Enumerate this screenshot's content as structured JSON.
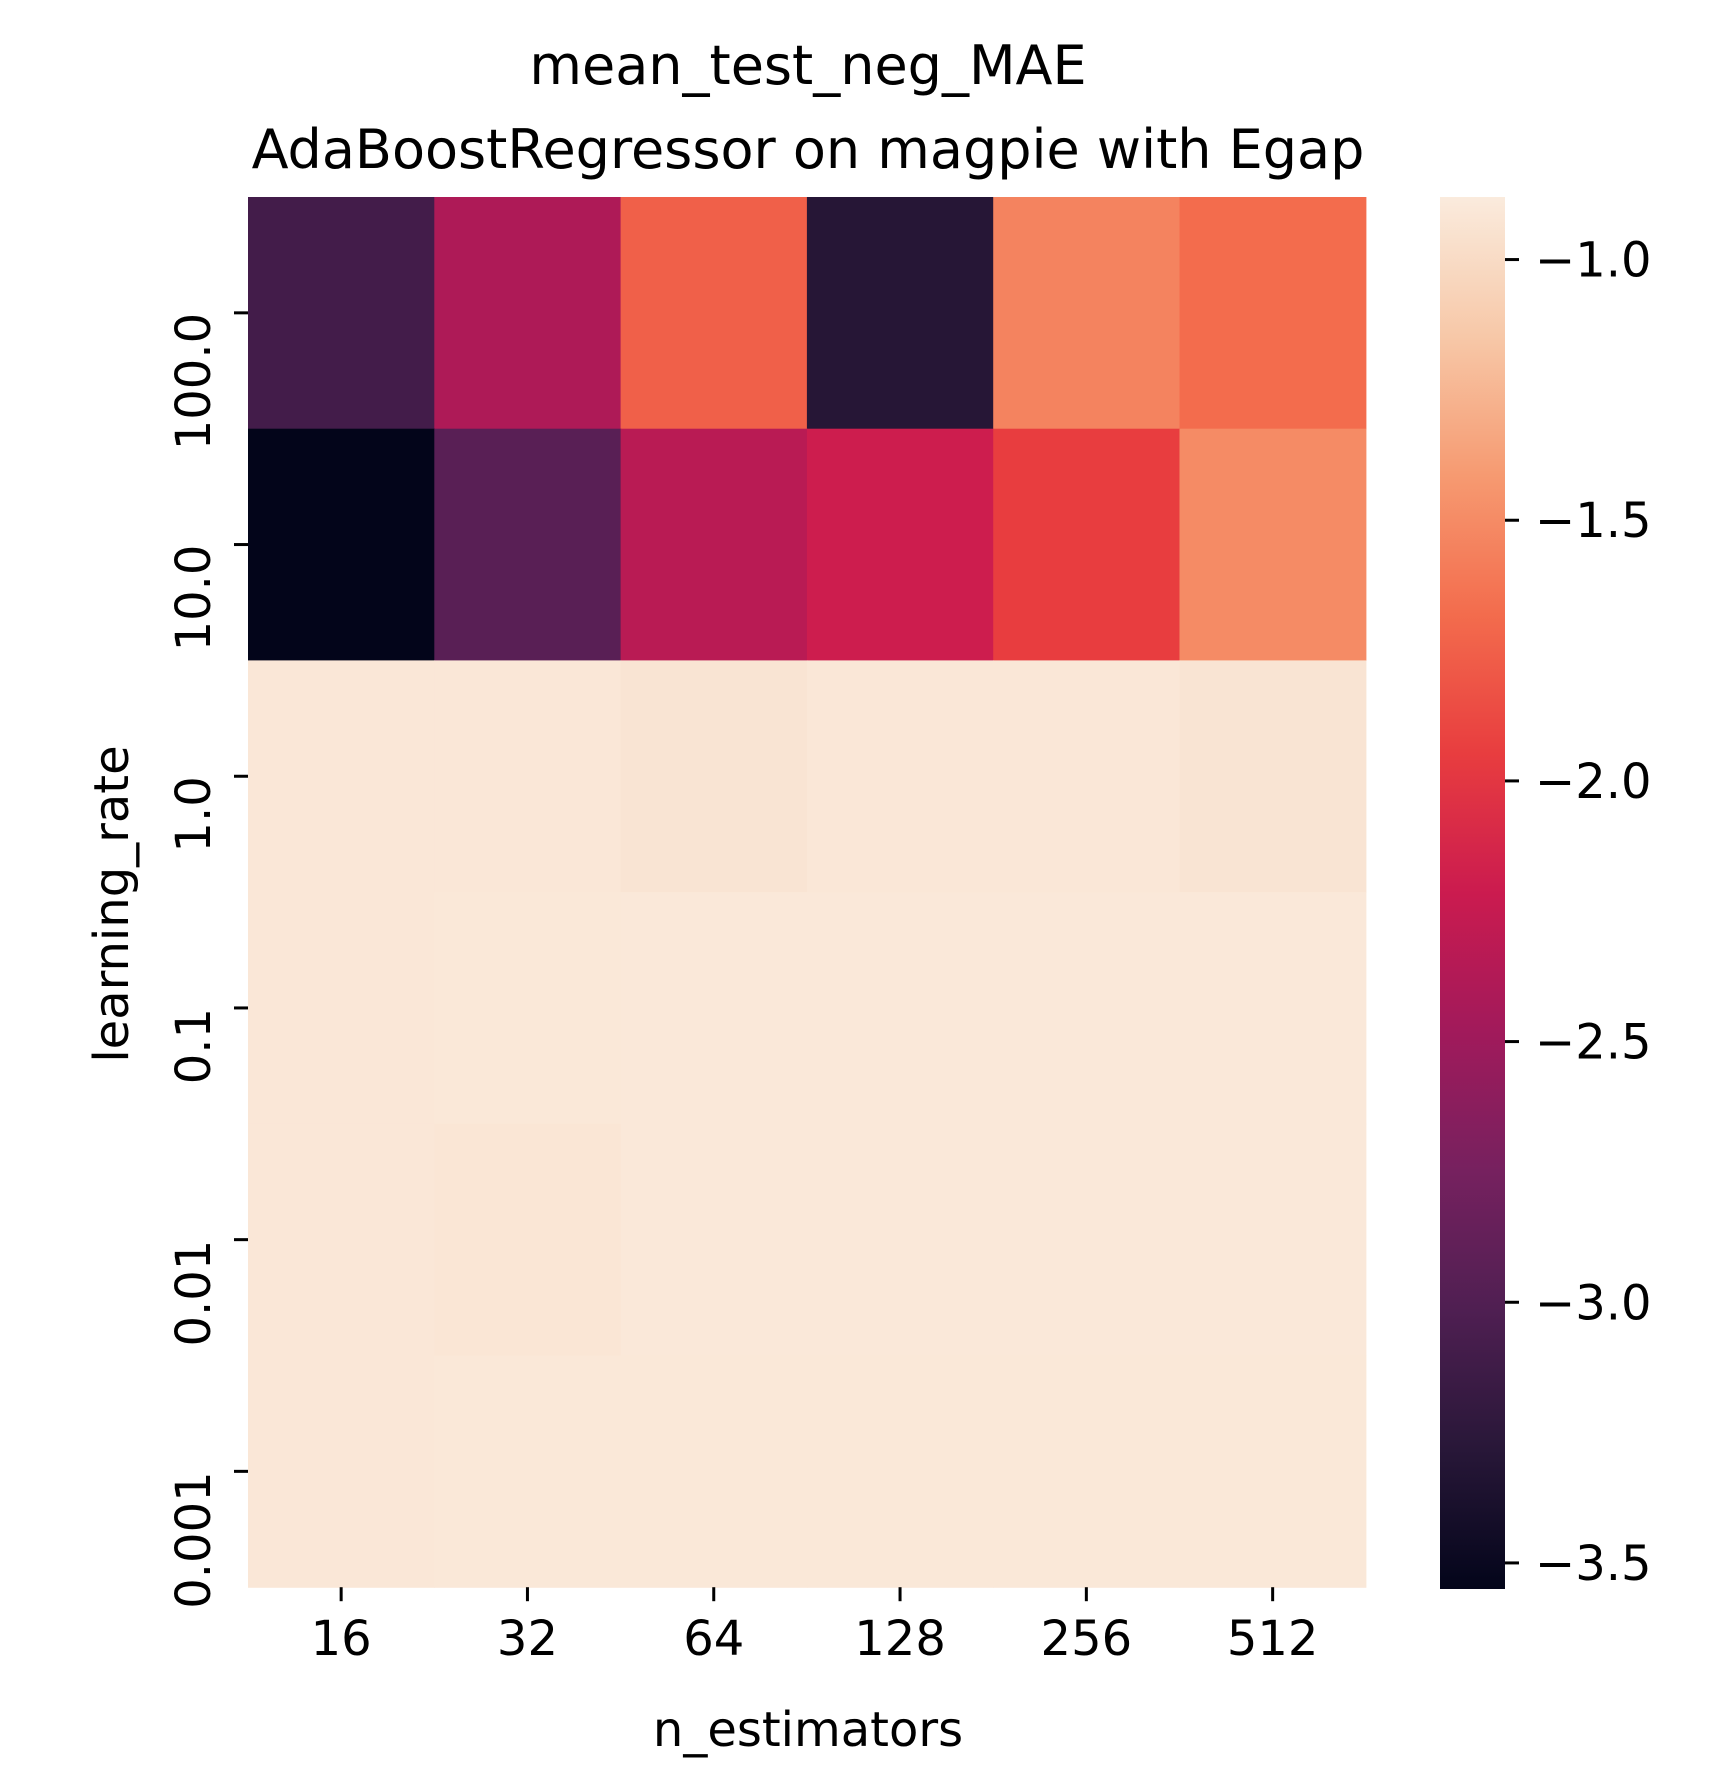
{
  "chart_data": {
    "type": "heatmap",
    "title": [
      "mean_test_neg_MAE",
      "AdaBoostRegressor on magpie with Egap"
    ],
    "xlabel": "n_estimators",
    "ylabel": "learning_rate",
    "x_categories": [
      "16",
      "32",
      "64",
      "128",
      "256",
      "512"
    ],
    "y_categories": [
      "100.0",
      "10.0",
      "1.0",
      "0.1",
      "0.01",
      "0.001"
    ],
    "values": [
      [
        -3.1,
        -2.4,
        -1.75,
        -3.3,
        -1.55,
        -1.68
      ],
      [
        -3.55,
        -2.95,
        -2.33,
        -2.2,
        -1.95,
        -1.5
      ],
      [
        -0.91,
        -0.91,
        -0.93,
        -0.91,
        -0.91,
        -0.93
      ],
      [
        -0.91,
        -0.905,
        -0.9,
        -0.9,
        -0.9,
        -0.9
      ],
      [
        -0.91,
        -0.92,
        -0.9,
        -0.9,
        -0.9,
        -0.9
      ],
      [
        -0.91,
        -0.905,
        -0.905,
        -0.905,
        -0.905,
        -0.905
      ]
    ],
    "colormap": "rocket",
    "colorbar": {
      "range": [
        -3.55,
        -0.88
      ],
      "ticks": [
        -1.0,
        -1.5,
        -2.0,
        -2.5,
        -3.0,
        -3.5
      ],
      "tick_labels": [
        "−1.0",
        "−1.5",
        "−2.0",
        "−2.5",
        "−3.0",
        "−3.5"
      ]
    }
  }
}
